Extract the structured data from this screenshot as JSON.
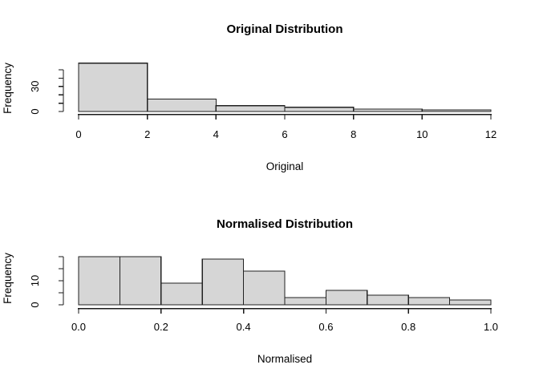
{
  "figure": {
    "background": "#ffffff",
    "colors": {
      "bar_fill": "#d6d6d6",
      "bar_border": "#222222",
      "axis": "#1a1a1a",
      "text": "#000000"
    }
  },
  "chart_data": [
    {
      "type": "bar",
      "kind": "histogram",
      "title": "Original Distribution",
      "xlabel": "Original",
      "ylabel": "Frequency",
      "bin_edges": [
        0,
        2,
        4,
        6,
        8,
        10,
        12
      ],
      "counts": [
        58,
        15,
        7,
        5,
        3,
        2
      ],
      "xlim": [
        0,
        12
      ],
      "x_ticks": [
        0,
        2,
        4,
        6,
        8,
        10,
        12
      ],
      "x_tick_labels": [
        "0",
        "2",
        "4",
        "6",
        "8",
        "10",
        "12"
      ],
      "y_ticks": [
        0,
        10,
        20,
        30,
        40,
        50
      ],
      "y_tick_labels_shown": {
        "0": "0",
        "30": "30"
      },
      "ylim": [
        0,
        58
      ],
      "grid": false,
      "legend": null
    },
    {
      "type": "bar",
      "kind": "histogram",
      "title": "Normalised Distribution",
      "xlabel": "Normalised",
      "ylabel": "Frequency",
      "bin_edges": [
        0,
        0.1,
        0.2,
        0.3,
        0.4,
        0.5,
        0.6,
        0.7,
        0.8,
        0.9,
        1.0
      ],
      "counts": [
        20,
        20,
        9,
        19,
        14,
        3,
        6,
        4,
        3,
        2
      ],
      "xlim": [
        0,
        1
      ],
      "x_ticks": [
        0,
        0.2,
        0.4,
        0.6,
        0.8,
        1.0
      ],
      "x_tick_labels": [
        "0.0",
        "0.2",
        "0.4",
        "0.6",
        "0.8",
        "1.0"
      ],
      "y_ticks": [
        0,
        5,
        10,
        15,
        20
      ],
      "y_tick_labels_shown": {
        "0": "0",
        "10": "10"
      },
      "ylim": [
        0,
        20
      ],
      "grid": false,
      "legend": null
    }
  ]
}
